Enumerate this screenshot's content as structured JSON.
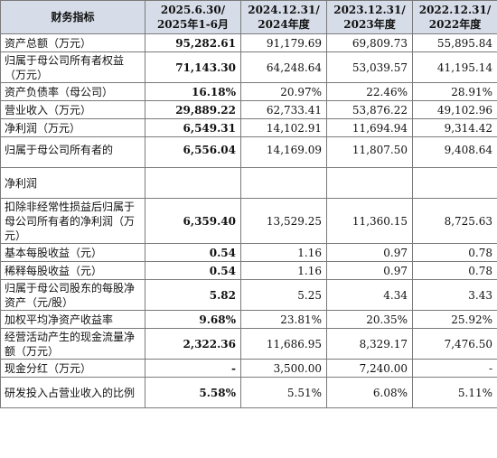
{
  "headers": [
    "财务指标",
    "2025.6.30/\n2025年1-6月",
    "2024.12.31/\n2024年度",
    "2023.12.31/\n2023年度",
    "2022.12.31/\n2022年度"
  ],
  "header_lines": [
    [
      "财务指标"
    ],
    [
      "2025.6.30/",
      "2025年1-6月"
    ],
    [
      "2024.12.31/",
      "2024年度"
    ],
    [
      "2023.12.31/",
      "2023年度"
    ],
    [
      "2022.12.31/",
      "2022年度"
    ]
  ],
  "rows": [
    {
      "label": "资产总额（万元）",
      "values": [
        "95,282.61",
        "91,179.69",
        "69,809.73",
        "55,895.84"
      ]
    },
    {
      "label": "归属于母公司所有者权益（万元）",
      "values": [
        "71,143.30",
        "64,248.64",
        "53,039.57",
        "41,195.14"
      ]
    },
    {
      "label": "资产负债率（母公司）",
      "values": [
        "16.18%",
        "20.97%",
        "22.46%",
        "28.91%"
      ]
    },
    {
      "label": "营业收入（万元）",
      "values": [
        "29,889.22",
        "62,733.41",
        "53,876.22",
        "49,102.96"
      ]
    },
    {
      "label": "净利润（万元）",
      "values": [
        "6,549.31",
        "14,102.91",
        "11,694.94",
        "9,314.42"
      ]
    },
    {
      "label": "归属于母公司所有者的",
      "values": [
        "6,556.04",
        "14,169.09",
        "11,807.50",
        "9,408.64"
      ]
    },
    {
      "label": "净利润",
      "values": [
        "",
        "",
        "",
        ""
      ]
    },
    {
      "label": "扣除非经常性损益后归属于母公司所有者的净利润（万元）",
      "values": [
        "6,359.40",
        "13,529.25",
        "11,360.15",
        "8,725.63"
      ]
    },
    {
      "label": "基本每股收益（元）",
      "values": [
        "0.54",
        "1.16",
        "0.97",
        "0.78"
      ]
    },
    {
      "label": "稀释每股收益（元）",
      "values": [
        "0.54",
        "1.16",
        "0.97",
        "0.78"
      ]
    },
    {
      "label": "归属于母公司股东的每股净资产（元/股）",
      "values": [
        "5.82",
        "5.25",
        "4.34",
        "3.43"
      ]
    },
    {
      "label": "加权平均净资产收益率",
      "values": [
        "9.68%",
        "23.81%",
        "20.35%",
        "25.92%"
      ]
    },
    {
      "label": "经营活动产生的现金流量净额（万元）",
      "values": [
        "2,322.36",
        "11,686.95",
        "8,329.17",
        "7,476.50"
      ]
    },
    {
      "label": "现金分红（万元）",
      "values": [
        "-",
        "3,500.00",
        "7,240.00",
        "-"
      ]
    },
    {
      "label": "研发投入占营业收入的比例",
      "values": [
        "5.58%",
        "5.51%",
        "6.08%",
        "5.11%"
      ]
    }
  ]
}
